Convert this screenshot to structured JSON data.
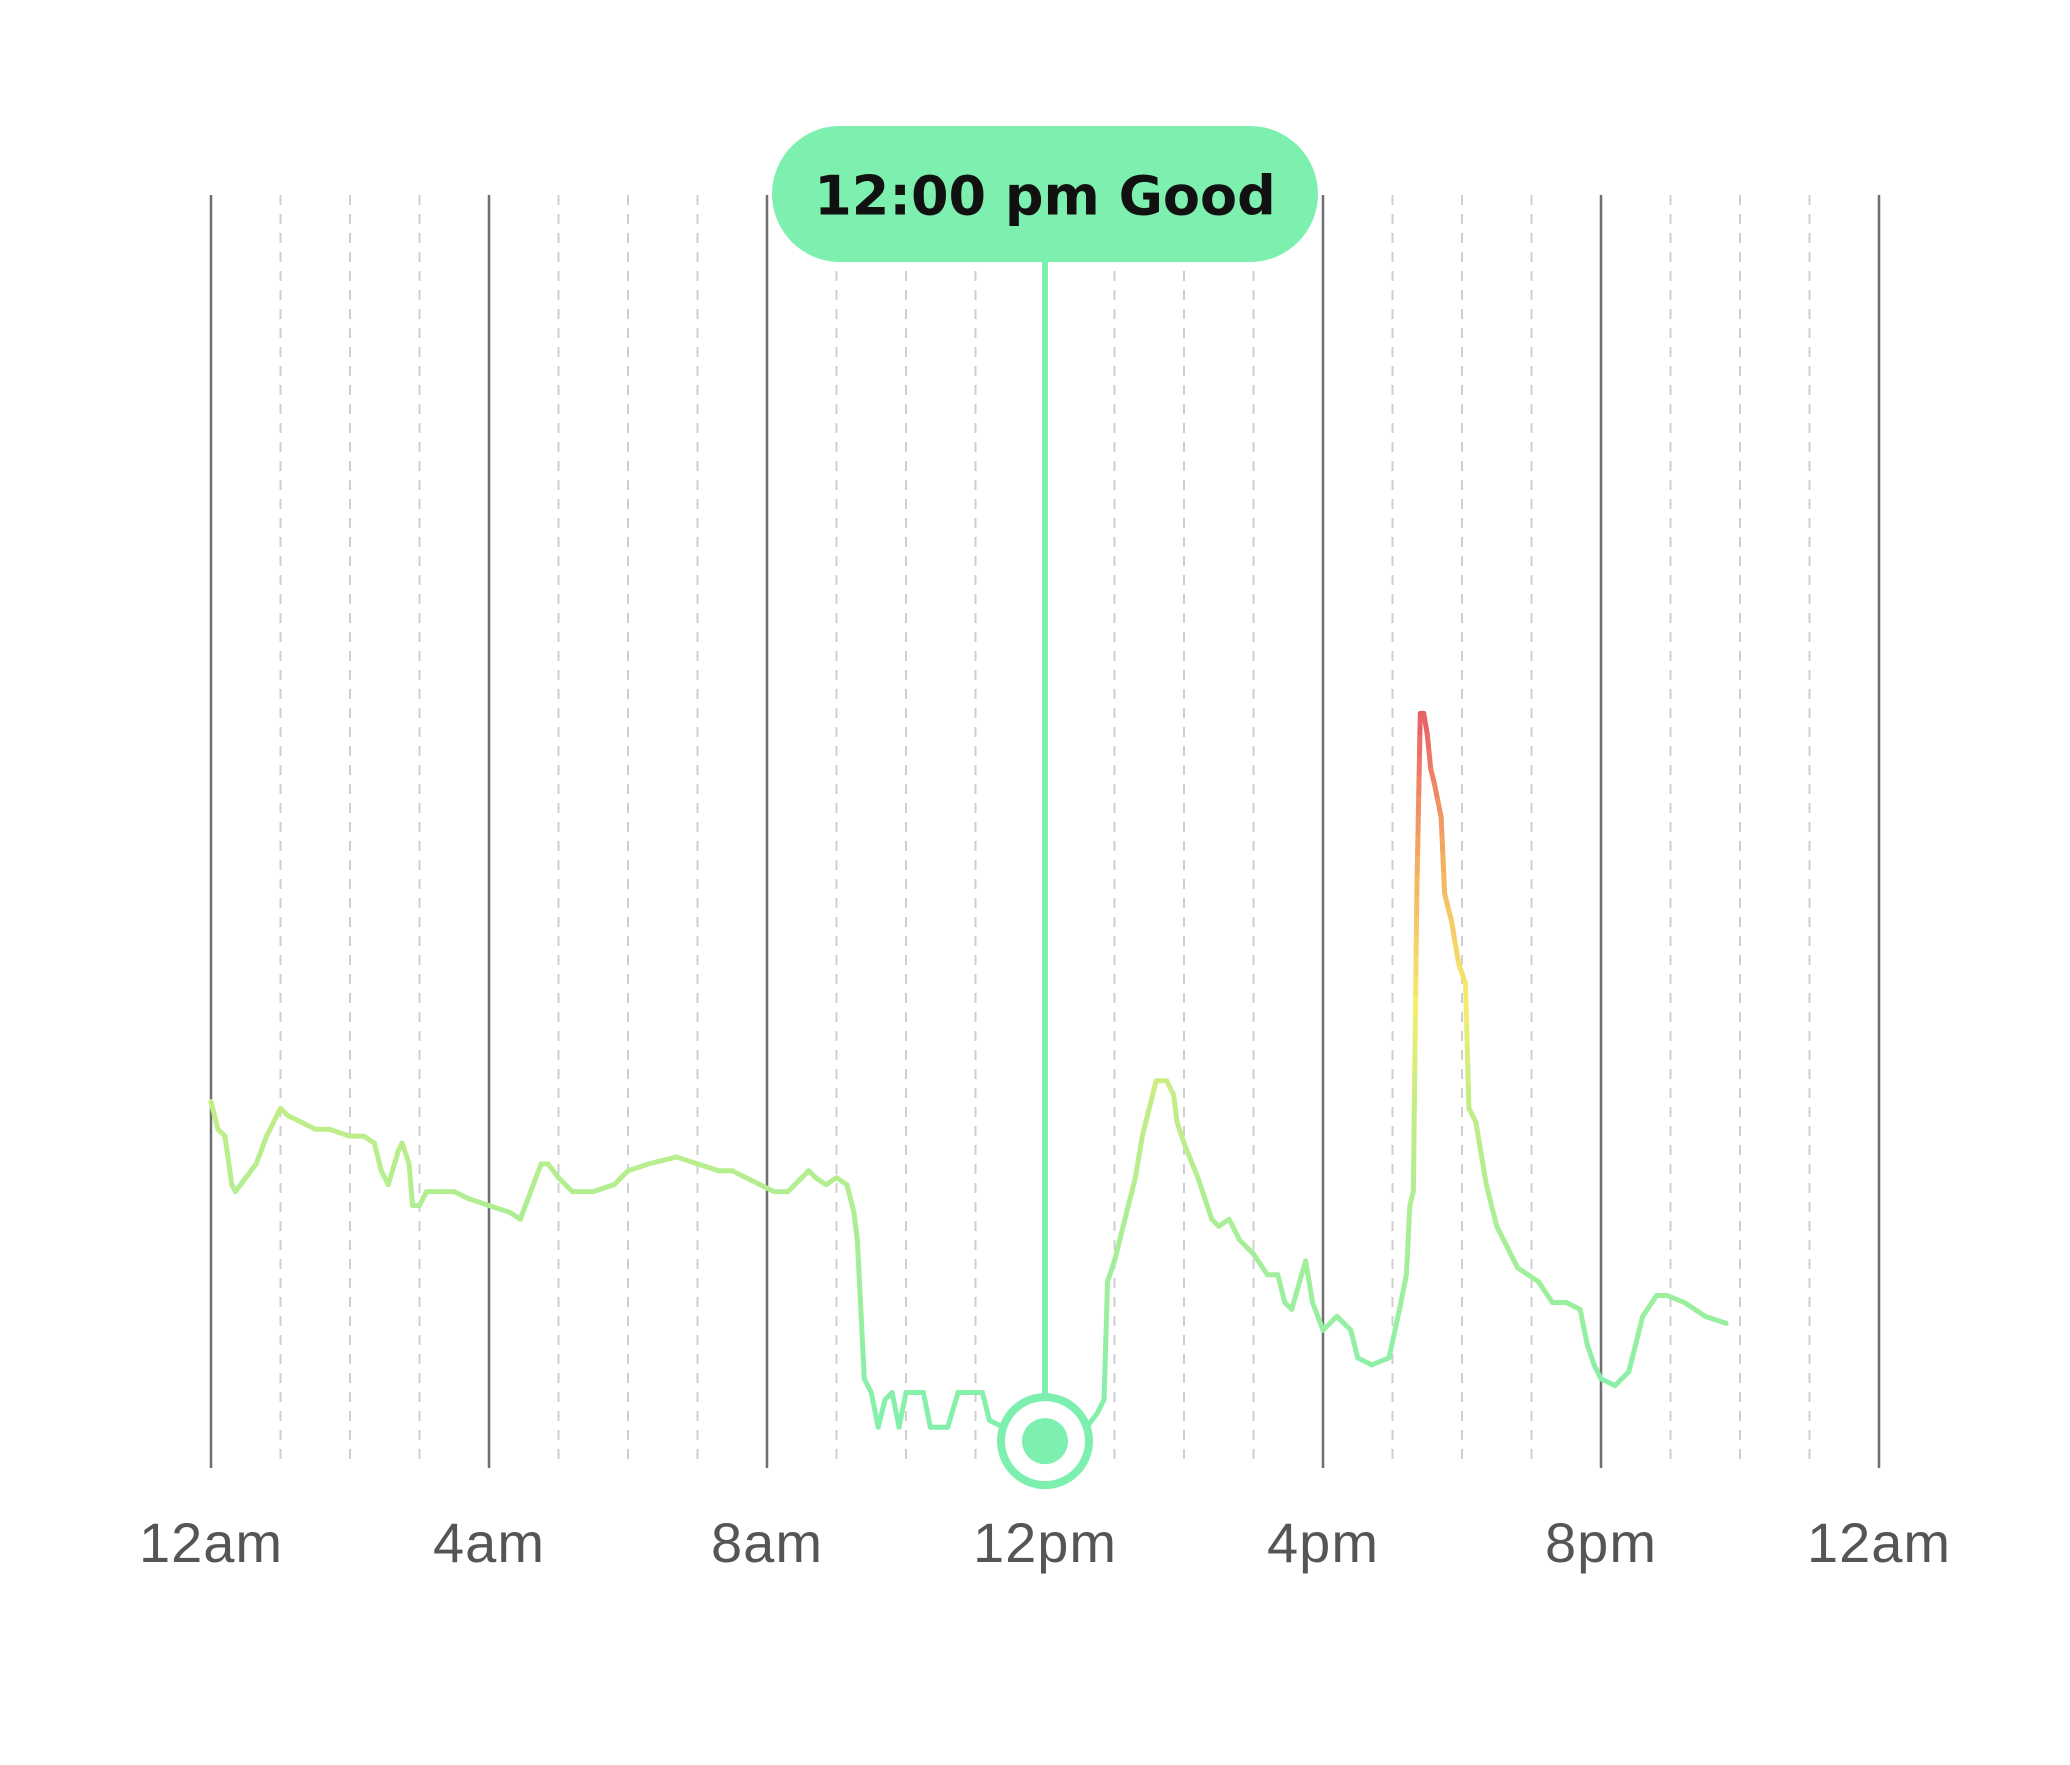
{
  "chart_data": {
    "type": "line",
    "title": "",
    "xlabel": "",
    "ylabel": "",
    "x_unit": "hours",
    "xlim": [
      0,
      24
    ],
    "ylim": [
      0,
      100
    ],
    "grid": {
      "major_every_hours": 4,
      "minor_every_hours": 1,
      "major_style": "solid",
      "minor_style": "dashed"
    },
    "x_ticks": [
      {
        "hour": 0,
        "label": "12am"
      },
      {
        "hour": 4,
        "label": "4am"
      },
      {
        "hour": 8,
        "label": "8am"
      },
      {
        "hour": 12,
        "label": "12pm"
      },
      {
        "hour": 16,
        "label": "4pm"
      },
      {
        "hour": 20,
        "label": "8pm"
      },
      {
        "hour": 24,
        "label": "12am"
      }
    ],
    "series": [
      {
        "color_scale": [
          {
            "at": 0,
            "color": "#7df0b0"
          },
          {
            "at": 25,
            "color": "#c4ed86"
          },
          {
            "at": 32,
            "color": "#f5ee6e"
          },
          {
            "at": 42,
            "color": "#f5b060"
          },
          {
            "at": 55,
            "color": "#e4506a"
          }
        ],
        "points": [
          [
            0.0,
            25
          ],
          [
            0.1,
            23
          ],
          [
            0.2,
            22.5
          ],
          [
            0.3,
            19
          ],
          [
            0.35,
            18.5
          ],
          [
            0.5,
            19.5
          ],
          [
            0.65,
            20.5
          ],
          [
            0.8,
            22.5
          ],
          [
            0.9,
            23.5
          ],
          [
            1.0,
            24.5
          ],
          [
            1.1,
            24
          ],
          [
            1.3,
            23.5
          ],
          [
            1.5,
            23
          ],
          [
            1.7,
            23
          ],
          [
            2.0,
            22.5
          ],
          [
            2.2,
            22.5
          ],
          [
            2.35,
            22
          ],
          [
            2.45,
            20
          ],
          [
            2.55,
            19
          ],
          [
            2.7,
            21.5
          ],
          [
            2.75,
            22
          ],
          [
            2.85,
            20.5
          ],
          [
            2.9,
            17.5
          ],
          [
            3.0,
            17.5
          ],
          [
            3.1,
            18.5
          ],
          [
            3.4,
            18.5
          ],
          [
            3.5,
            18.5
          ],
          [
            3.7,
            18
          ],
          [
            4.0,
            17.5
          ],
          [
            4.3,
            17
          ],
          [
            4.45,
            16.5
          ],
          [
            4.6,
            18.5
          ],
          [
            4.75,
            20.5
          ],
          [
            4.85,
            20.5
          ],
          [
            5.0,
            19.5
          ],
          [
            5.2,
            18.5
          ],
          [
            5.5,
            18.5
          ],
          [
            5.8,
            19
          ],
          [
            6.0,
            20
          ],
          [
            6.3,
            20.5
          ],
          [
            6.7,
            21
          ],
          [
            7.0,
            20.5
          ],
          [
            7.3,
            20
          ],
          [
            7.5,
            20
          ],
          [
            7.7,
            19.5
          ],
          [
            7.9,
            19
          ],
          [
            8.1,
            18.5
          ],
          [
            8.3,
            18.5
          ],
          [
            8.5,
            19.5
          ],
          [
            8.6,
            20
          ],
          [
            8.7,
            19.5
          ],
          [
            8.85,
            19
          ],
          [
            9.0,
            19.5
          ],
          [
            9.15,
            19
          ],
          [
            9.25,
            17
          ],
          [
            9.3,
            15
          ],
          [
            9.4,
            5
          ],
          [
            9.5,
            4
          ],
          [
            9.6,
            1.5
          ],
          [
            9.7,
            3.5
          ],
          [
            9.8,
            4
          ],
          [
            9.9,
            1.5
          ],
          [
            10.0,
            4
          ],
          [
            10.1,
            4
          ],
          [
            10.25,
            4
          ],
          [
            10.35,
            1.5
          ],
          [
            10.5,
            1.5
          ],
          [
            10.6,
            1.5
          ],
          [
            10.75,
            4
          ],
          [
            10.9,
            4
          ],
          [
            11.1,
            4
          ],
          [
            11.2,
            2
          ],
          [
            11.4,
            1.5
          ],
          [
            11.5,
            0.8
          ],
          [
            11.7,
            0.6
          ],
          [
            12.0,
            0.5
          ],
          [
            12.3,
            0.8
          ],
          [
            12.6,
            1.5
          ],
          [
            12.75,
            2.5
          ],
          [
            12.85,
            3.5
          ],
          [
            12.9,
            12
          ],
          [
            13.0,
            13.5
          ],
          [
            13.1,
            15.5
          ],
          [
            13.2,
            17.5
          ],
          [
            13.3,
            19.5
          ],
          [
            13.4,
            22.5
          ],
          [
            13.5,
            24.5
          ],
          [
            13.6,
            26.5
          ],
          [
            13.75,
            26.5
          ],
          [
            13.85,
            25.5
          ],
          [
            13.9,
            23.5
          ],
          [
            14.0,
            22
          ],
          [
            14.2,
            19.5
          ],
          [
            14.4,
            16.5
          ],
          [
            14.5,
            16
          ],
          [
            14.65,
            16.5
          ],
          [
            14.8,
            15
          ],
          [
            15.0,
            14
          ],
          [
            15.2,
            12.5
          ],
          [
            15.35,
            12.5
          ],
          [
            15.45,
            10.5
          ],
          [
            15.55,
            10
          ],
          [
            15.75,
            13.5
          ],
          [
            15.85,
            10.5
          ],
          [
            16.0,
            8.5
          ],
          [
            16.1,
            9
          ],
          [
            16.2,
            9.5
          ],
          [
            16.4,
            8.5
          ],
          [
            16.5,
            6.5
          ],
          [
            16.7,
            6
          ],
          [
            16.95,
            6.5
          ],
          [
            17.1,
            10
          ],
          [
            17.2,
            12.5
          ],
          [
            17.25,
            17.5
          ],
          [
            17.3,
            18.5
          ],
          [
            17.35,
            40
          ],
          [
            17.4,
            53
          ],
          [
            17.45,
            53
          ],
          [
            17.5,
            51.5
          ],
          [
            17.55,
            49
          ],
          [
            17.6,
            48
          ],
          [
            17.7,
            45.5
          ],
          [
            17.75,
            40
          ],
          [
            17.85,
            38
          ],
          [
            17.95,
            35
          ],
          [
            18.05,
            33.5
          ],
          [
            18.1,
            24.5
          ],
          [
            18.2,
            23.5
          ],
          [
            18.35,
            19
          ],
          [
            18.5,
            16
          ],
          [
            18.65,
            14.5
          ],
          [
            18.8,
            13
          ],
          [
            18.95,
            12.5
          ],
          [
            19.1,
            12
          ],
          [
            19.3,
            10.5
          ],
          [
            19.5,
            10.5
          ],
          [
            19.7,
            10
          ],
          [
            19.8,
            7.5
          ],
          [
            19.9,
            6
          ],
          [
            20.0,
            5
          ],
          [
            20.2,
            4.5
          ],
          [
            20.4,
            5.5
          ],
          [
            20.5,
            7.5
          ],
          [
            20.6,
            9.5
          ],
          [
            20.8,
            11
          ],
          [
            20.95,
            11
          ],
          [
            21.2,
            10.5
          ],
          [
            21.5,
            9.5
          ],
          [
            21.8,
            9
          ]
        ]
      }
    ],
    "tooltip": {
      "text": "12:00 pm Good",
      "x": 12.0,
      "y": 0.5,
      "color": "#7df0b0"
    },
    "legend": "none"
  }
}
